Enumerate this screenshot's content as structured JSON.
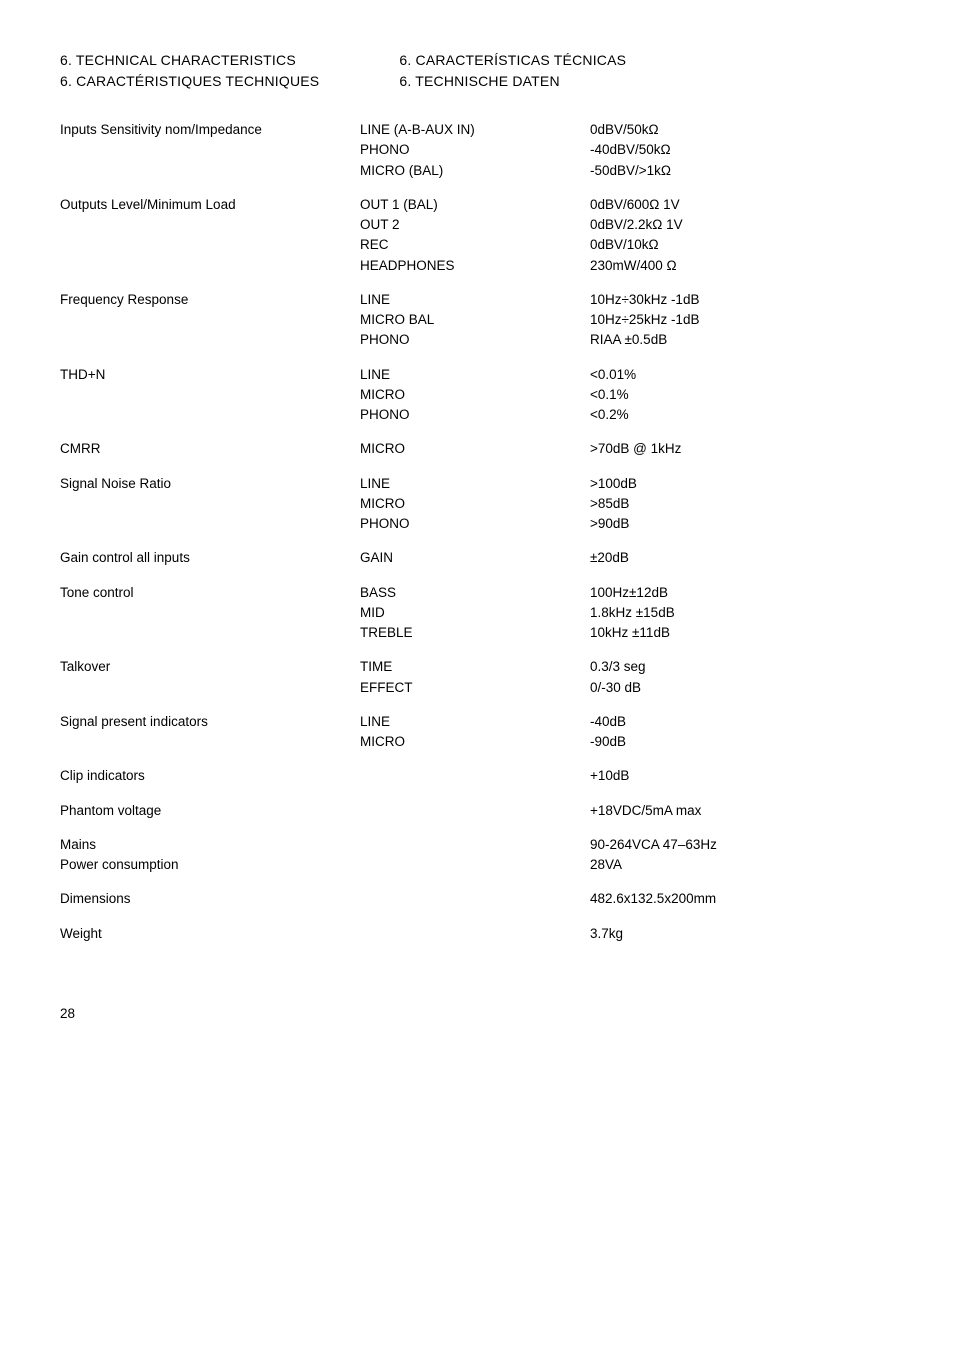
{
  "headings": {
    "left": {
      "a": "6. TECHNICAL CHARACTERISTICS",
      "b": "6. CARACTÉRISTIQUES TECHNIQUES"
    },
    "right": {
      "a": "6. CARACTERÍSTICAS TÉCNICAS",
      "b": "6. TECHNISCHE DATEN"
    }
  },
  "specs": [
    {
      "label": "Inputs Sensitivity nom/Impedance",
      "mid": [
        "LINE (A-B-AUX IN)",
        "PHONO",
        "MICRO (BAL)"
      ],
      "val": [
        "0dBV/50kΩ",
        "-40dBV/50kΩ",
        "-50dBV/>1kΩ"
      ]
    },
    {
      "label": "Outputs Level/Minimum Load",
      "mid": [
        "OUT 1 (BAL)",
        "OUT 2",
        "REC",
        "HEADPHONES"
      ],
      "val": [
        "0dBV/600Ω 1V",
        "0dBV/2.2kΩ 1V",
        "0dBV/10kΩ",
        "230mW/400 Ω"
      ]
    },
    {
      "label": "Frequency Response",
      "mid": [
        "LINE",
        "MICRO BAL",
        "PHONO"
      ],
      "val": [
        "10Hz÷30kHz -1dB",
        "10Hz÷25kHz -1dB",
        "RIAA ±0.5dB"
      ]
    },
    {
      "label": "THD+N",
      "mid": [
        "LINE",
        "MICRO",
        "PHONO"
      ],
      "val": [
        "<0.01%",
        "<0.1%",
        "<0.2%"
      ]
    },
    {
      "label": "CMRR",
      "mid": [
        "MICRO"
      ],
      "val": [
        ">70dB @ 1kHz"
      ]
    },
    {
      "label": "Signal Noise Ratio",
      "mid": [
        "LINE",
        "MICRO",
        "PHONO"
      ],
      "val": [
        ">100dB",
        ">85dB",
        ">90dB"
      ]
    },
    {
      "label": "Gain control all inputs",
      "mid": [
        "GAIN"
      ],
      "val": [
        "±20dB"
      ]
    },
    {
      "label": "Tone control",
      "mid": [
        "BASS",
        "MID",
        "TREBLE"
      ],
      "val": [
        "100Hz±12dB",
        "1.8kHz ±15dB",
        "10kHz ±11dB"
      ]
    },
    {
      "label": "Talkover",
      "mid": [
        "TIME",
        "EFFECT"
      ],
      "val": [
        "0.3/3 seg",
        "0/-30 dB"
      ]
    },
    {
      "label": "Signal present indicators",
      "mid": [
        "LINE",
        "MICRO"
      ],
      "val": [
        "-40dB",
        "-90dB"
      ]
    },
    {
      "label": "Clip indicators",
      "mid": [
        ""
      ],
      "val": [
        "+10dB"
      ]
    },
    {
      "label": "Phantom voltage",
      "mid": [
        ""
      ],
      "val": [
        "+18VDC/5mA max"
      ]
    },
    {
      "label": "Mains\nPower consumption",
      "mid": [
        ""
      ],
      "val": [
        "90-264VCA 47–63Hz",
        "28VA"
      ]
    },
    {
      "label": "Dimensions",
      "mid": [
        ""
      ],
      "val": [
        "482.6x132.5x200mm"
      ]
    },
    {
      "label": "Weight",
      "mid": [
        ""
      ],
      "val": [
        "3.7kg"
      ]
    }
  ],
  "page_number": "28"
}
